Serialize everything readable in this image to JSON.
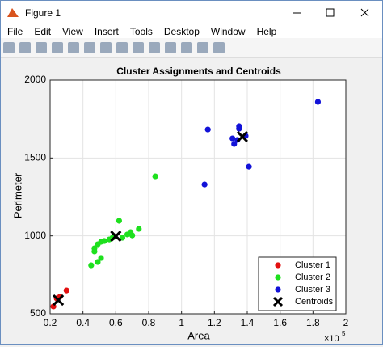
{
  "window": {
    "title": "Figure 1",
    "menu": [
      "File",
      "Edit",
      "View",
      "Insert",
      "Tools",
      "Desktop",
      "Window",
      "Help"
    ]
  },
  "chart_data": {
    "type": "scatter",
    "title": "Cluster Assignments and Centroids",
    "x_label": "Area",
    "y_label": "Perimeter",
    "x_scale_label": {
      "base": "×10",
      "power": "5"
    },
    "xlim": [
      0.2,
      2
    ],
    "xticks": [
      0.2,
      0.4,
      0.6,
      0.8,
      1,
      1.2,
      1.4,
      1.6,
      1.8,
      2
    ],
    "ylim": [
      500,
      2000
    ],
    "yticks": [
      500,
      1000,
      1500,
      2000
    ],
    "grid": true,
    "legend_position": "southeast",
    "series": [
      {
        "name": "Cluster 1",
        "color": "#e31010",
        "marker": "o",
        "x": [
          0.22,
          0.24,
          0.3,
          0.26
        ],
        "values": [
          547,
          599,
          650,
          610
        ]
      },
      {
        "name": "Cluster 2",
        "color": "#1ee01e",
        "marker": "o",
        "x": [
          0.45,
          0.49,
          0.51,
          0.47,
          0.49,
          0.51,
          0.53,
          0.56,
          0.58,
          0.62,
          0.64,
          0.67,
          0.69,
          0.7,
          0.74,
          0.84,
          0.47
        ],
        "values": [
          811,
          832,
          858,
          920,
          946,
          962,
          967,
          977,
          988,
          1097,
          988,
          1009,
          1024,
          1003,
          1045,
          1382,
          900
        ]
      },
      {
        "name": "Cluster 3",
        "color": "#1212d8",
        "marker": "o",
        "x": [
          1.16,
          1.14,
          1.31,
          1.32,
          1.34,
          1.35,
          1.35,
          1.39,
          1.41,
          1.83
        ],
        "values": [
          1683,
          1330,
          1626,
          1590,
          1616,
          1704,
          1688,
          1642,
          1444,
          1860
        ]
      },
      {
        "name": "Centroids",
        "color": "#000000",
        "marker": "x",
        "x": [
          0.25,
          0.6,
          1.37
        ],
        "values": [
          588,
          998,
          1637
        ]
      }
    ]
  }
}
